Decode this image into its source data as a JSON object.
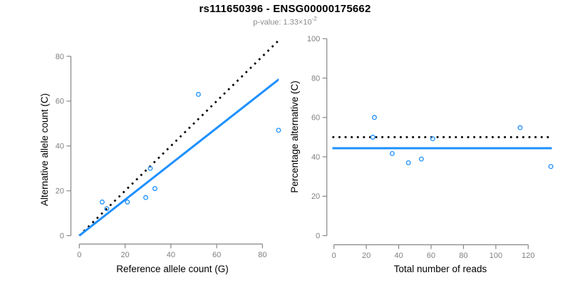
{
  "header": {
    "title": "rs111650396 - ENSG00000175662",
    "subtitle_prefix": "p-value: 1.33×10",
    "subtitle_exponent": "-2"
  },
  "colors": {
    "accent_blue": "#1e90ff",
    "line_black": "#000000",
    "axis_gray": "#878787",
    "tick_label_gray": "#808080",
    "subtitle_gray": "#8c8c8c"
  },
  "chart_data": [
    {
      "id": "allele-count-scatter",
      "type": "scatter",
      "xlabel": "Reference allele count (G)",
      "ylabel": "Alternative allele count (C)",
      "xlim": [
        0,
        87.5
      ],
      "ylim": [
        0,
        87.5
      ],
      "xticks": [
        0,
        20,
        40,
        60,
        80
      ],
      "yticks": [
        0,
        20,
        40,
        60,
        80
      ],
      "grid": false,
      "points": [
        {
          "x": 10,
          "y": 15
        },
        {
          "x": 12,
          "y": 12
        },
        {
          "x": 21,
          "y": 15
        },
        {
          "x": 29,
          "y": 17
        },
        {
          "x": 31,
          "y": 30
        },
        {
          "x": 33,
          "y": 21
        },
        {
          "x": 52,
          "y": 63
        },
        {
          "x": 87,
          "y": 47
        }
      ],
      "lines": [
        {
          "name": "identity-line",
          "style": "dotted",
          "color": "#000000",
          "from": {
            "x": 0,
            "y": 0
          },
          "to": {
            "x": 89,
            "y": 89
          }
        },
        {
          "name": "regression-line",
          "style": "solid",
          "color": "#1e90ff",
          "slope": 0.8,
          "from": {
            "x": 0,
            "y": 0
          },
          "to": {
            "x": 89,
            "y": 71.2
          }
        }
      ]
    },
    {
      "id": "percentage-alternative-scatter",
      "type": "scatter",
      "xlabel": "Total number of reads",
      "ylabel": "Percentage alternative (C)",
      "xlim": [
        0,
        135
      ],
      "ylim": [
        0,
        100
      ],
      "xticks": [
        0,
        20,
        40,
        60,
        80,
        100,
        120
      ],
      "yticks": [
        0,
        20,
        40,
        60,
        80,
        100
      ],
      "grid": false,
      "points": [
        {
          "x": 25,
          "y": 60
        },
        {
          "x": 24,
          "y": 50
        },
        {
          "x": 36,
          "y": 41.7
        },
        {
          "x": 46,
          "y": 37
        },
        {
          "x": 54,
          "y": 38.9
        },
        {
          "x": 61,
          "y": 49.2
        },
        {
          "x": 115,
          "y": 54.8
        },
        {
          "x": 134,
          "y": 35.1
        }
      ],
      "lines": [
        {
          "name": "expected-50-percent-line",
          "style": "dotted",
          "color": "#000000",
          "hline": 50
        },
        {
          "name": "mean-percentage-line",
          "style": "solid",
          "color": "#1e90ff",
          "hline": 44.4
        }
      ]
    }
  ]
}
